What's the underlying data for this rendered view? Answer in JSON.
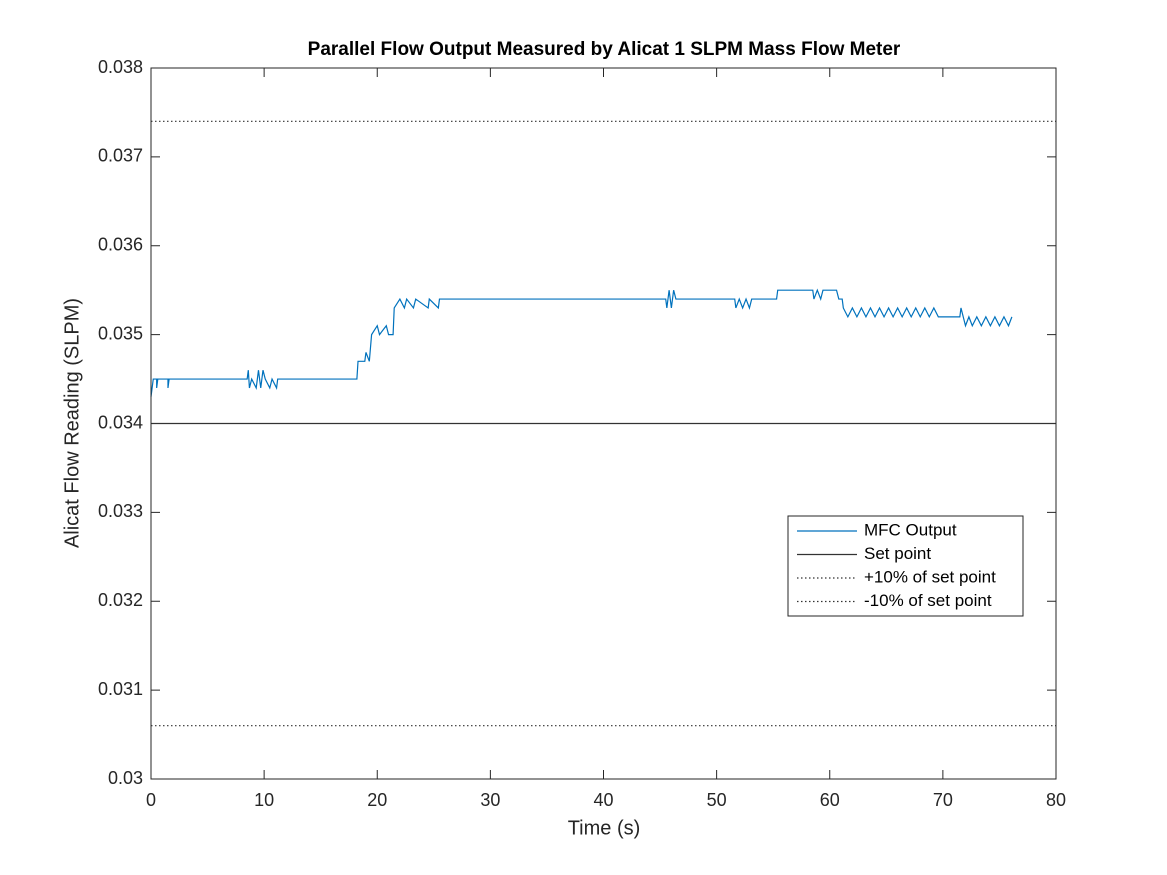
{
  "chart_data": {
    "type": "line",
    "title": "Parallel Flow Output Measured by Alicat 1 SLPM Mass Flow Meter",
    "x_label": "Time (s)",
    "y_label": "Alicat Flow Reading (SLPM)",
    "xlim": [
      0,
      80
    ],
    "xticks": [
      0,
      10,
      20,
      30,
      40,
      50,
      60,
      70,
      80
    ],
    "ylim": [
      0.03,
      0.038
    ],
    "yticks": [
      0.03,
      0.031,
      0.032,
      0.033,
      0.034,
      0.035,
      0.036,
      0.037,
      0.038
    ],
    "box": true,
    "series": [
      {
        "name": "MFC Output",
        "color": "#0072bd",
        "style": "solid",
        "x": [
          0,
          0.2,
          0.5,
          0.5,
          0.6,
          1.5,
          1.5,
          1.6,
          8.5,
          8.6,
          8.7,
          8.9,
          9.3,
          9.5,
          9.7,
          9.9,
          10.1,
          10.5,
          10.7,
          11.1,
          11.2,
          18.2,
          18.3,
          18.9,
          19.0,
          19.3,
          19.5,
          20.0,
          20.2,
          20.8,
          21.0,
          21.4,
          21.5,
          22.0,
          22.4,
          22.6,
          23.2,
          23.4,
          24.5,
          24.6,
          25.4,
          25.5,
          45.5,
          45.6,
          45.8,
          46.0,
          46.2,
          46.4,
          51.6,
          51.7,
          52.0,
          52.3,
          52.6,
          52.9,
          53.1,
          55.3,
          55.4,
          58.5,
          58.6,
          58.9,
          59.2,
          59.4,
          60.6,
          60.8,
          61.1,
          61.2,
          61.6,
          62.0,
          62.4,
          62.8,
          63.2,
          63.6,
          64.0,
          64.4,
          64.8,
          65.2,
          65.6,
          66.0,
          66.4,
          66.8,
          67.2,
          67.6,
          68.0,
          68.4,
          68.8,
          69.2,
          69.6,
          71.5,
          71.6,
          71.8,
          72.0,
          72.3,
          72.6,
          73.0,
          73.4,
          73.8,
          74.2,
          74.6,
          75.0,
          75.4,
          75.8,
          76.1
        ],
        "values": [
          0.0343,
          0.0345,
          0.0345,
          0.0344,
          0.0345,
          0.0345,
          0.0344,
          0.0345,
          0.0345,
          0.0346,
          0.0344,
          0.0345,
          0.0344,
          0.0346,
          0.0344,
          0.0346,
          0.0345,
          0.0344,
          0.0345,
          0.0344,
          0.0345,
          0.0345,
          0.0347,
          0.0347,
          0.0348,
          0.0347,
          0.035,
          0.0351,
          0.035,
          0.0351,
          0.035,
          0.035,
          0.0353,
          0.0354,
          0.0353,
          0.0354,
          0.0353,
          0.0354,
          0.0353,
          0.0354,
          0.0353,
          0.0354,
          0.0354,
          0.0353,
          0.0355,
          0.0353,
          0.0355,
          0.0354,
          0.0354,
          0.0353,
          0.0354,
          0.0353,
          0.0354,
          0.0353,
          0.0354,
          0.0354,
          0.0355,
          0.0355,
          0.0354,
          0.0355,
          0.0354,
          0.0355,
          0.0355,
          0.0354,
          0.0354,
          0.0353,
          0.0352,
          0.0353,
          0.0352,
          0.0353,
          0.0352,
          0.0353,
          0.0352,
          0.0353,
          0.0352,
          0.0353,
          0.0352,
          0.0353,
          0.0352,
          0.0353,
          0.0352,
          0.0353,
          0.0352,
          0.0353,
          0.0352,
          0.0353,
          0.0352,
          0.0352,
          0.0353,
          0.0352,
          0.0351,
          0.0352,
          0.0351,
          0.0352,
          0.0351,
          0.0352,
          0.0351,
          0.0352,
          0.0351,
          0.0352,
          0.0351,
          0.0352
        ]
      },
      {
        "name": "Set point",
        "color": "#333333",
        "style": "solid",
        "x": [
          0,
          80
        ],
        "values": [
          0.034,
          0.034
        ]
      },
      {
        "name": "+10% of set point",
        "color": "#333333",
        "style": "dotted",
        "x": [
          0,
          80
        ],
        "values": [
          0.0374,
          0.0374
        ]
      },
      {
        "name": "-10% of set point",
        "color": "#333333",
        "style": "dotted",
        "x": [
          0,
          80
        ],
        "values": [
          0.0306,
          0.0306
        ]
      }
    ]
  }
}
